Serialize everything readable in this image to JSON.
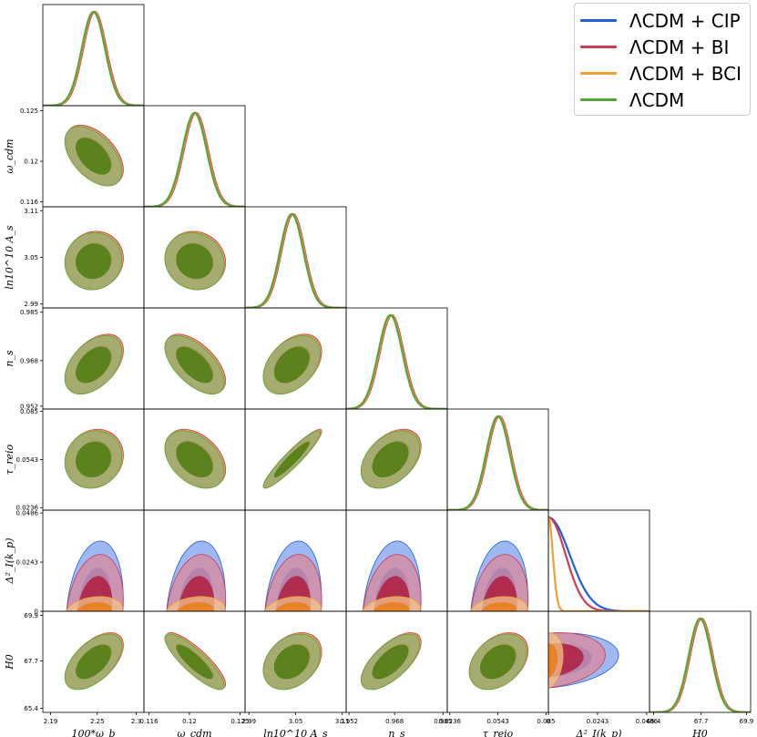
{
  "chart_data": {
    "type": "triangle-corner",
    "title": "",
    "parameters": [
      {
        "key": "omega_b",
        "label": "100*ω_b",
        "range": [
          2.18,
          2.31
        ],
        "ticks": [
          2.19,
          2.25,
          2.3
        ],
        "tick_labels": [
          "2.19",
          "2.25",
          "2.3"
        ],
        "mean": 2.245,
        "sigma": 0.015
      },
      {
        "key": "omega_cdm",
        "label": "ω_cdm",
        "range": [
          0.1155,
          0.1255
        ],
        "ticks": [
          0.116,
          0.12,
          0.125
        ],
        "tick_labels": [
          "0.116",
          "0.12",
          "0.125"
        ],
        "mean": 0.1205,
        "sigma": 0.0012
      },
      {
        "key": "ln10As",
        "label": "ln10^10 A_s",
        "range": [
          2.985,
          3.115
        ],
        "ticks": [
          2.99,
          3.05,
          3.11
        ],
        "tick_labels": [
          "2.99",
          "3.05",
          "3.11"
        ],
        "mean": 3.045,
        "sigma": 0.015
      },
      {
        "key": "n_s",
        "label": "n_s",
        "range": [
          0.951,
          0.9865
        ],
        "ticks": [
          0.952,
          0.968,
          0.985
        ],
        "tick_labels": [
          "0.952",
          "0.968",
          "0.985"
        ],
        "mean": 0.9665,
        "sigma": 0.0042
      },
      {
        "key": "tau_reio",
        "label": "τ_reio",
        "range": [
          0.022,
          0.0865
        ],
        "ticks": [
          0.0236,
          0.0543,
          0.085
        ],
        "tick_labels": [
          "0.0236",
          "0.0543",
          "0.085"
        ],
        "mean": 0.0543,
        "sigma": 0.0075
      },
      {
        "key": "Delta_I",
        "label": "Δ²_I(k_p)",
        "range": [
          0.0,
          0.05
        ],
        "ticks": [
          0.0,
          0.0243,
          0.0486
        ],
        "tick_labels": [
          "0",
          "0.0243",
          "0.0486"
        ],
        "mean": 0.009,
        "sigma": 0.008
      },
      {
        "key": "H0",
        "label": "H0",
        "range": [
          65.2,
          70.1
        ],
        "ticks": [
          65.4,
          67.7,
          69.9
        ],
        "tick_labels": [
          "65.4",
          "67.7",
          "69.9"
        ],
        "mean": 67.65,
        "sigma": 0.55
      }
    ],
    "series": [
      {
        "name": "ΛCDM + CIP",
        "color": "#1f5fd8",
        "fill_outer": "#7da0ee",
        "fill_inner": "#3a6ce0",
        "shift": 0.1,
        "delta_sigma": 0.0105
      },
      {
        "name": "ΛCDM + BI",
        "color": "#d03a55",
        "fill_outer": "#d9889a",
        "fill_inner": "#b01d3e",
        "shift": 0.12,
        "delta_sigma": 0.0085
      },
      {
        "name": "ΛCDM + BCI",
        "color": "#f0a030",
        "fill_outer": "#f4c48a",
        "fill_inner": "#ea7e1a",
        "shift": 0.06,
        "delta_sigma": 0.0022
      },
      {
        "name": "ΛCDM",
        "color": "#5aa23a",
        "fill_outer": "#8fa864",
        "fill_inner": "#4e7d14",
        "shift": 0.0,
        "delta_sigma": null
      }
    ],
    "correlations": [
      {
        "pair": [
          "omega_cdm",
          "omega_b"
        ],
        "rho": -0.5
      },
      {
        "pair": [
          "ln10As",
          "omega_b"
        ],
        "rho": 0.05
      },
      {
        "pair": [
          "ln10As",
          "omega_cdm"
        ],
        "rho": -0.1
      },
      {
        "pair": [
          "n_s",
          "omega_b"
        ],
        "rho": 0.45
      },
      {
        "pair": [
          "n_s",
          "omega_cdm"
        ],
        "rho": -0.6
      },
      {
        "pair": [
          "n_s",
          "ln10As"
        ],
        "rho": 0.4
      },
      {
        "pair": [
          "tau_reio",
          "omega_b"
        ],
        "rho": 0.1
      },
      {
        "pair": [
          "tau_reio",
          "omega_cdm"
        ],
        "rho": -0.4
      },
      {
        "pair": [
          "tau_reio",
          "ln10As"
        ],
        "rho": 0.93
      },
      {
        "pair": [
          "tau_reio",
          "n_s"
        ],
        "rho": 0.4
      },
      {
        "pair": [
          "H0",
          "omega_b"
        ],
        "rho": 0.55
      },
      {
        "pair": [
          "H0",
          "omega_cdm"
        ],
        "rho": -0.85
      },
      {
        "pair": [
          "H0",
          "ln10As"
        ],
        "rho": 0.3
      },
      {
        "pair": [
          "H0",
          "n_s"
        ],
        "rho": 0.65
      },
      {
        "pair": [
          "H0",
          "tau_reio"
        ],
        "rho": 0.35
      }
    ],
    "legend_position": "top-right"
  }
}
